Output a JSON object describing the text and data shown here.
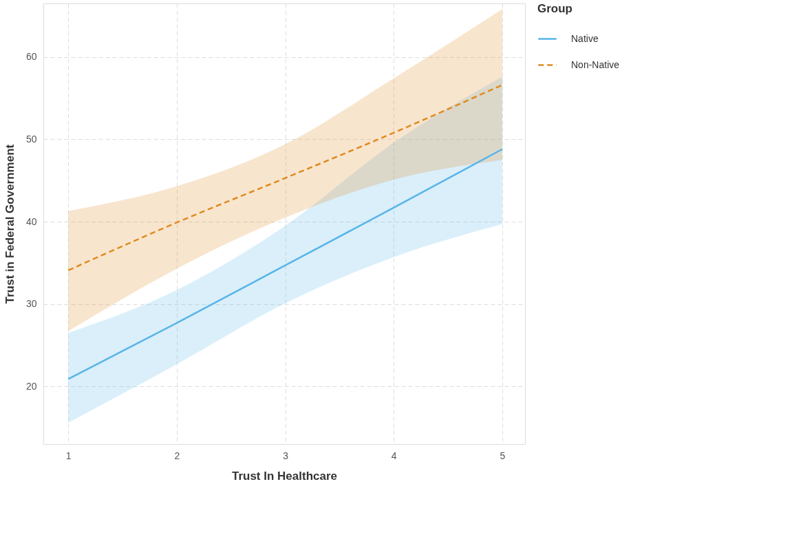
{
  "chart_data": {
    "type": "line",
    "xlabel": "Trust In Healthcare",
    "ylabel": "Trust in Federal Government",
    "legend_title": "Group",
    "x": [
      1,
      2,
      3,
      4,
      5
    ],
    "series": [
      {
        "name": "Native",
        "color": "#56b4e9",
        "line_style": "solid",
        "values": [
          20.9,
          27.7,
          34.7,
          41.7,
          48.8
        ],
        "lower": [
          15.6,
          22.7,
          30.1,
          35.7,
          39.7
        ],
        "upper": [
          26.5,
          31.7,
          39.5,
          49.6,
          57.6
        ]
      },
      {
        "name": "Non-Native",
        "color": "#e08a1e",
        "line_style": "dashed",
        "values": [
          34.1,
          39.9,
          45.3,
          50.8,
          56.6
        ],
        "lower": [
          26.7,
          34.3,
          40.5,
          45.1,
          47.5
        ],
        "upper": [
          41.3,
          44.3,
          49.4,
          57.4,
          65.8
        ]
      }
    ],
    "xlim": [
      0.77,
      5.21
    ],
    "ylim": [
      13,
      66.5
    ],
    "xticks": [
      1,
      2,
      3,
      4,
      5
    ],
    "yticks": [
      20,
      30,
      40,
      50,
      60
    ],
    "grid": true,
    "legend": "right"
  }
}
